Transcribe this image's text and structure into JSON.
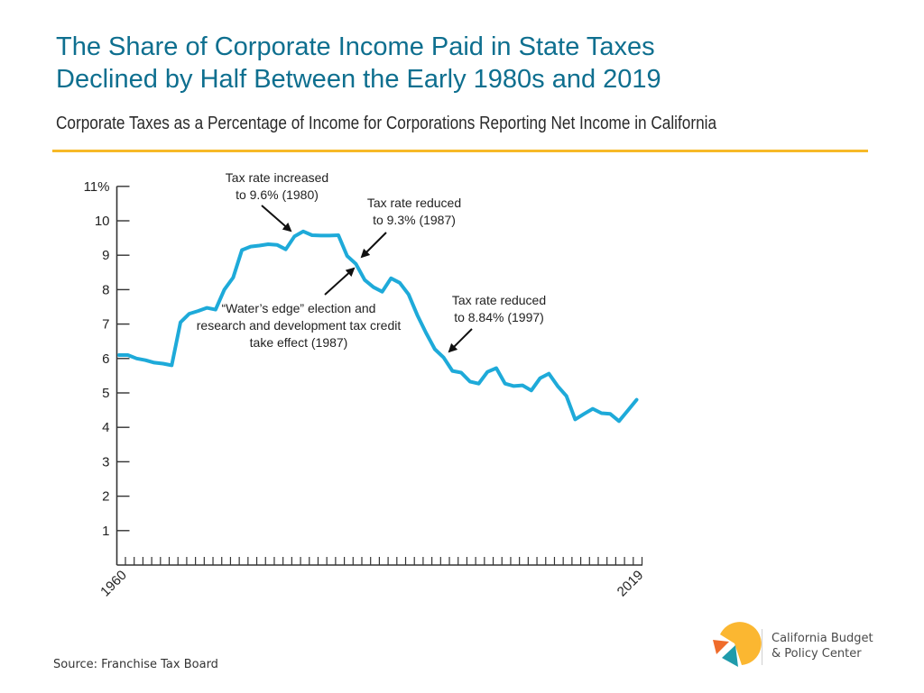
{
  "header": {
    "title_line1": "The Share of Corporate Income Paid in State Taxes",
    "title_line2": "Declined by Half Between the Early 1980s and 2019",
    "subtitle": "Corporate Taxes as a Percentage of Income for Corporations Reporting Net Income in California"
  },
  "colors": {
    "title": "#0e6f8f",
    "rule": "#f7b928",
    "line": "#1eaad9",
    "axis": "#333333",
    "logo_yellow": "#fbb731",
    "logo_orange": "#ef6b2a",
    "logo_teal": "#1f9bab"
  },
  "footer": {
    "source": "Source: Franchise Tax Board",
    "logo_line1": "California Budget",
    "logo_line2": "& Policy Center"
  },
  "chart_data": {
    "type": "line",
    "title": "Corporate Taxes as a Percentage of Income for Corporations Reporting Net Income in California",
    "xlabel": "",
    "ylabel": "",
    "xlim": [
      1960,
      2019
    ],
    "ylim": [
      0,
      11
    ],
    "yticks": [
      1,
      2,
      3,
      4,
      5,
      6,
      7,
      8,
      9,
      10,
      11
    ],
    "ytick_labels": [
      "1",
      "2",
      "3",
      "4",
      "5",
      "6",
      "7",
      "8",
      "9",
      "10",
      "11%"
    ],
    "xtick_labels": [
      "1960",
      "2019"
    ],
    "grid": false,
    "legend": "none",
    "x": [
      1960,
      1961,
      1962,
      1963,
      1964,
      1965,
      1966,
      1967,
      1968,
      1969,
      1970,
      1971,
      1972,
      1973,
      1974,
      1975,
      1976,
      1977,
      1978,
      1979,
      1980,
      1981,
      1982,
      1983,
      1984,
      1985,
      1986,
      1987,
      1988,
      1989,
      1990,
      1991,
      1992,
      1993,
      1994,
      1995,
      1996,
      1997,
      1998,
      1999,
      2000,
      2001,
      2002,
      2003,
      2004,
      2005,
      2006,
      2007,
      2008,
      2009,
      2010,
      2011,
      2012,
      2013,
      2014,
      2015,
      2016,
      2017,
      2018,
      2019
    ],
    "series": [
      {
        "name": "Corporate taxes as % of income",
        "values": [
          6.1,
          6.1,
          6.0,
          5.95,
          5.88,
          5.85,
          5.8,
          7.05,
          7.3,
          7.38,
          7.47,
          7.42,
          8.0,
          8.35,
          9.15,
          9.25,
          9.28,
          9.32,
          9.3,
          9.17,
          9.55,
          9.69,
          9.58,
          9.57,
          9.57,
          9.58,
          8.98,
          8.75,
          8.28,
          8.07,
          7.94,
          8.33,
          8.2,
          7.86,
          7.26,
          6.74,
          6.27,
          6.03,
          5.64,
          5.59,
          5.33,
          5.27,
          5.61,
          5.72,
          5.27,
          5.2,
          5.22,
          5.07,
          5.43,
          5.56,
          5.2,
          4.91,
          4.23,
          4.39,
          4.54,
          4.41,
          4.39,
          4.18,
          4.49,
          4.8
        ]
      }
    ],
    "annotations": [
      {
        "lines": [
          "Tax rate increased",
          "to 9.6% (1980)"
        ],
        "target_year": 1980
      },
      {
        "lines": [
          "Tax rate reduced",
          "to 9.3% (1987)"
        ],
        "target_year": 1987
      },
      {
        "lines": [
          "“Water’s edge” election and",
          "research and development tax credit",
          "take effect (1987)"
        ],
        "target_year": 1987
      },
      {
        "lines": [
          "Tax rate reduced",
          "to 8.84% (1997)"
        ],
        "target_year": 1997
      }
    ]
  }
}
